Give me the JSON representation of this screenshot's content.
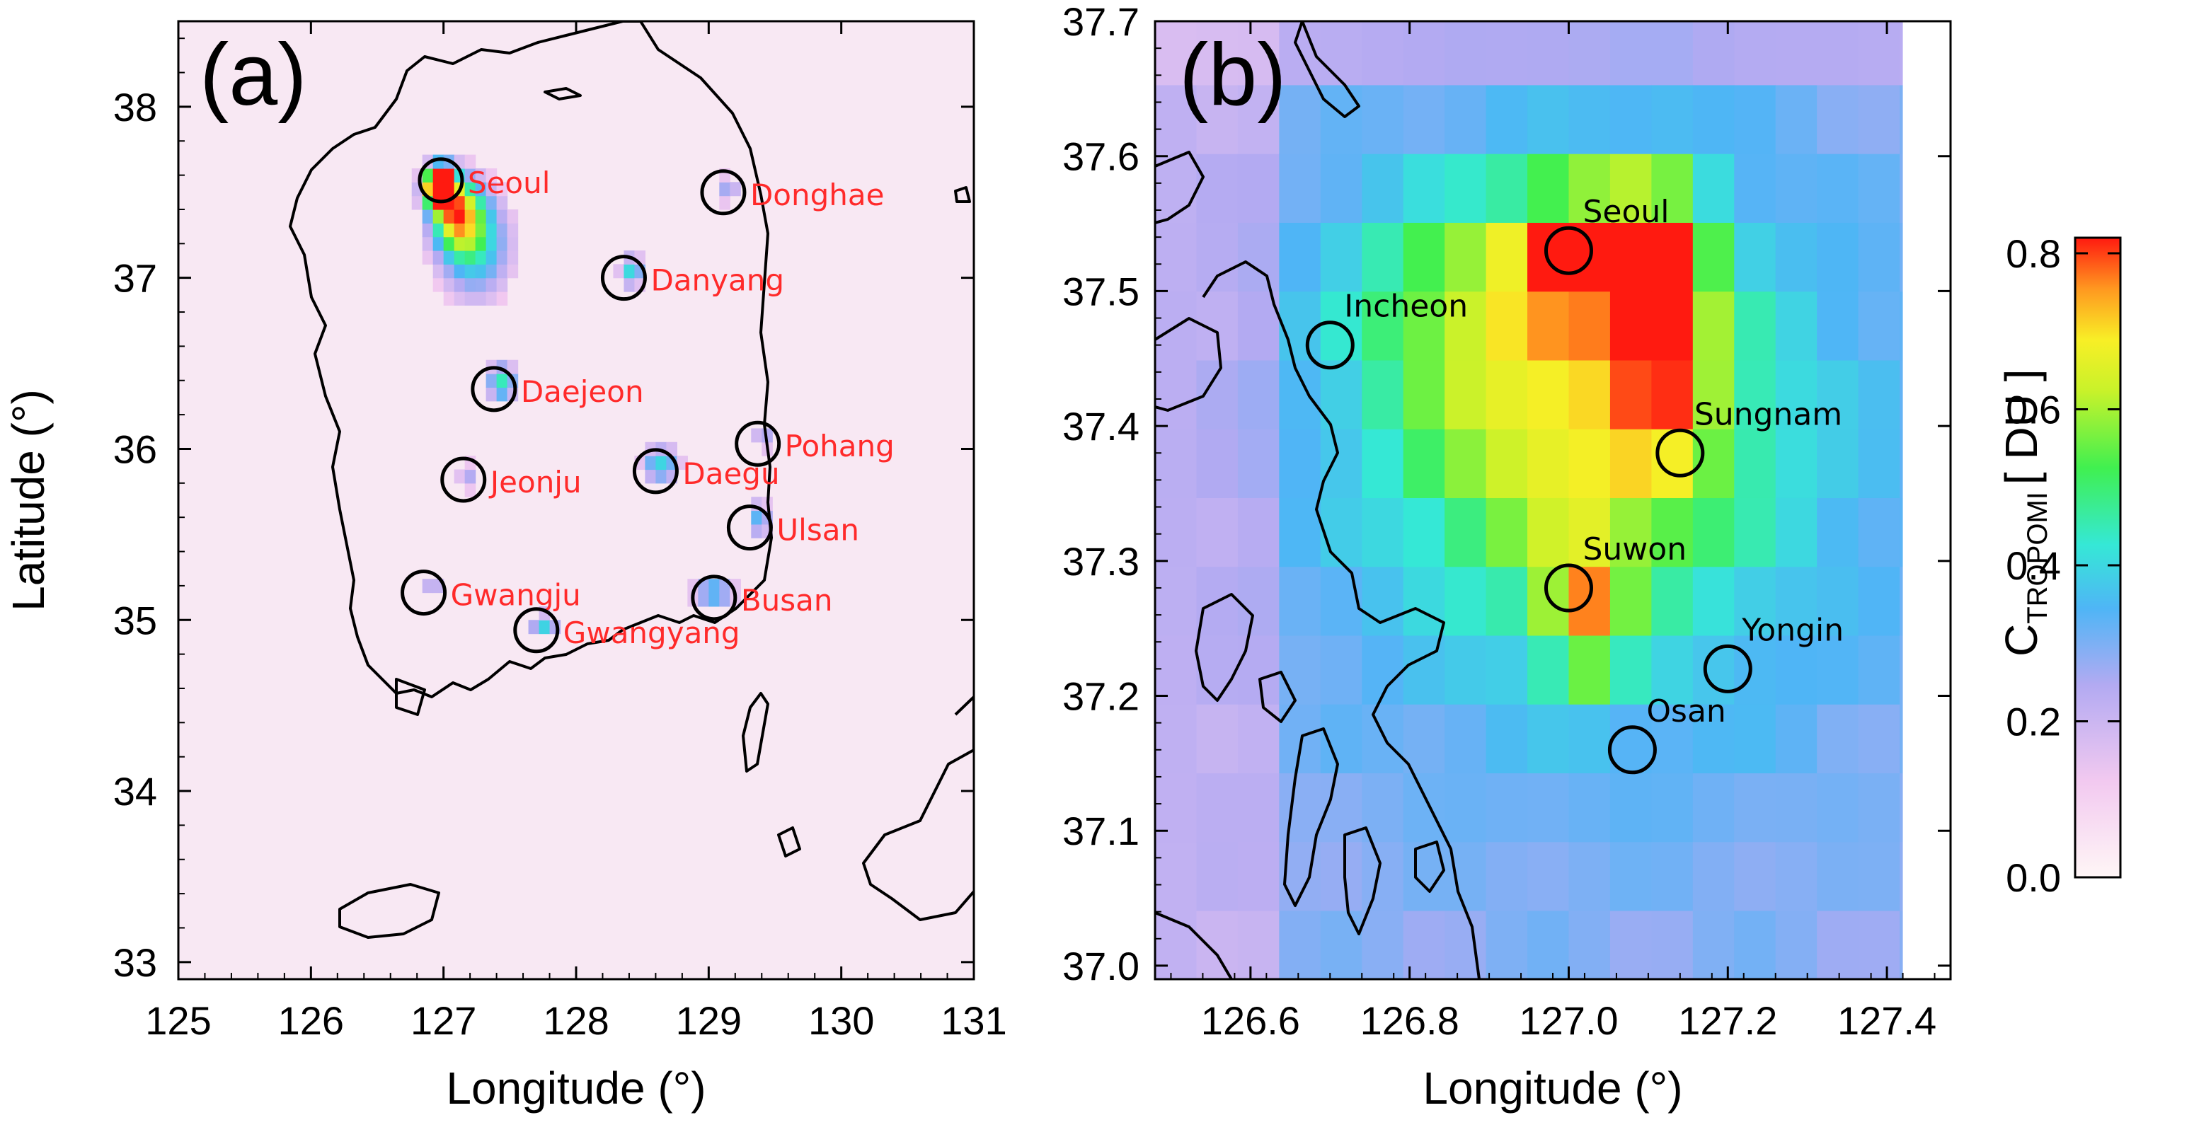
{
  "panel_a": {
    "label": "(a)",
    "xlabel": "Longitude (°)",
    "ylabel": "Latitude (°)",
    "x_ticks": [
      "125",
      "126",
      "127",
      "128",
      "129",
      "130",
      "131"
    ],
    "y_ticks": [
      "33",
      "34",
      "35",
      "36",
      "37",
      "38"
    ],
    "xlim": [
      125,
      131
    ],
    "ylim": [
      32.9,
      38.5
    ],
    "cities": [
      {
        "name": "Seoul",
        "lon": 126.98,
        "lat": 37.57
      },
      {
        "name": "Donghae",
        "lon": 129.11,
        "lat": 37.5
      },
      {
        "name": "Danyang",
        "lon": 128.36,
        "lat": 37.0
      },
      {
        "name": "Daejeon",
        "lon": 127.38,
        "lat": 36.35
      },
      {
        "name": "Pohang",
        "lon": 129.37,
        "lat": 36.03
      },
      {
        "name": "Jeonju",
        "lon": 127.15,
        "lat": 35.82
      },
      {
        "name": "Daegu",
        "lon": 128.6,
        "lat": 35.87
      },
      {
        "name": "Ulsan",
        "lon": 129.31,
        "lat": 35.54
      },
      {
        "name": "Gwangju",
        "lon": 126.85,
        "lat": 35.16
      },
      {
        "name": "Busan",
        "lon": 129.04,
        "lat": 35.13
      },
      {
        "name": "Gwangyang",
        "lon": 127.7,
        "lat": 34.94
      }
    ]
  },
  "panel_b": {
    "label": "(b)",
    "xlabel": "Longitude (°)",
    "x_ticks": [
      "126.6",
      "126.8",
      "127.0",
      "127.2",
      "127.4"
    ],
    "y_ticks": [
      "37.0",
      "37.1",
      "37.2",
      "37.3",
      "37.4",
      "37.5",
      "37.6",
      "37.7"
    ],
    "xlim": [
      126.48,
      127.48
    ],
    "ylim": [
      36.99,
      37.7
    ],
    "cities": [
      {
        "name": "Seoul",
        "lon": 127.0,
        "lat": 37.53
      },
      {
        "name": "Incheon",
        "lon": 126.7,
        "lat": 37.46
      },
      {
        "name": "Sungnam",
        "lon": 127.14,
        "lat": 37.38
      },
      {
        "name": "Suwon",
        "lon": 127.0,
        "lat": 37.28
      },
      {
        "name": "Yongin",
        "lon": 127.2,
        "lat": 37.22
      },
      {
        "name": "Osan",
        "lon": 127.08,
        "lat": 37.16
      }
    ]
  },
  "colorbar": {
    "label": "C",
    "label_sub": "TROPOMI",
    "label_unit": "[ DU ]",
    "ticks": [
      "0.0",
      "0.2",
      "0.4",
      "0.6",
      "0.8"
    ],
    "range": [
      0.0,
      0.82
    ]
  }
}
